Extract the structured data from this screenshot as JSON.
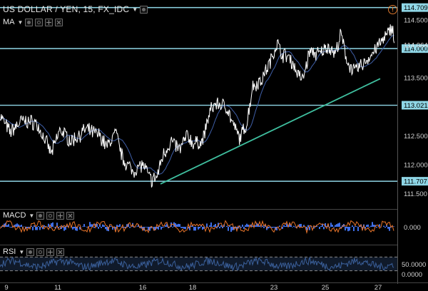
{
  "header": {
    "symbol": "US DOLLAR / YEN, 15, FX_IDC",
    "alert_icon": "exclamation-circle-icon"
  },
  "indicators": {
    "ma_label": "MA",
    "macd_label": "MACD",
    "rsi_label": "RSI"
  },
  "price_axis": {
    "ticks": [
      "114.500",
      "114.000",
      "113.500",
      "113.000",
      "112.500",
      "112.000",
      "111.500"
    ],
    "tick_values": [
      114.5,
      114.0,
      113.5,
      113.0,
      112.5,
      112.0,
      111.5
    ],
    "range": [
      111.24,
      114.84
    ],
    "last_price": "114.064",
    "last_price_value": 114.064,
    "horizontal_levels": [
      {
        "label": "114.709",
        "value": 114.709
      },
      {
        "label": "114.000",
        "value": 114.0
      },
      {
        "label": "113.021",
        "value": 113.021
      },
      {
        "label": "111.707",
        "value": 111.707
      }
    ],
    "trendline": {
      "from": {
        "date": "16",
        "value": 111.66
      },
      "to": {
        "date": "26",
        "value": 113.48
      }
    }
  },
  "macd_axis": {
    "tick": "0.000"
  },
  "rsi_axis": {
    "ticks": [
      "50.0000",
      "0.0000"
    ],
    "upper_band": 70,
    "lower_band": 30
  },
  "time_axis": {
    "labels": [
      "9",
      "11",
      "16",
      "18",
      "23",
      "25",
      "27"
    ]
  },
  "colors": {
    "background": "#000000",
    "price_line": "#ffffff",
    "ma_line": "#3f5fa8",
    "levels": "#8fd6e6",
    "trendline": "#3fbf9f",
    "macd_line": "#e8742a",
    "macd_hist": "#3f6fe8",
    "rsi_line": "#3a5f9a",
    "alert": "#e07a2e"
  }
}
